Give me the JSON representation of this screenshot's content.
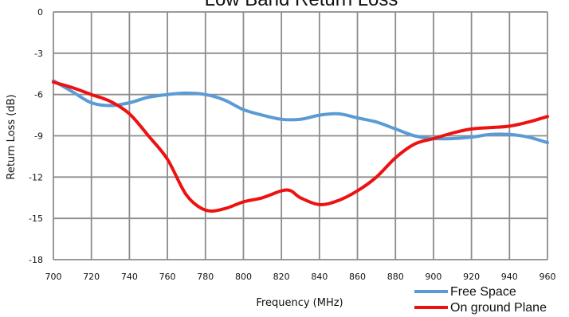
{
  "chart_data": {
    "type": "line",
    "title": "Low Band Return Loss",
    "xlabel": "Frequency (MHz)",
    "ylabel": "Return Loss (dB)",
    "xlim": [
      700,
      960
    ],
    "ylim": [
      -18,
      0
    ],
    "x_ticks": [
      700,
      720,
      740,
      760,
      780,
      800,
      820,
      840,
      860,
      880,
      900,
      920,
      940,
      960
    ],
    "y_ticks": [
      0,
      -3,
      -6,
      -9,
      -12,
      -15,
      -18
    ],
    "y_tick_labels": [
      "0",
      "-3",
      "-6",
      "-9",
      "-12",
      "-15",
      "-18"
    ],
    "grid": true,
    "legend_position": "bottom-right",
    "series": [
      {
        "name": "Free Space",
        "color": "#5b9bd5",
        "x": [
          700,
          710,
          720,
          730,
          740,
          750,
          760,
          770,
          780,
          790,
          800,
          810,
          820,
          830,
          840,
          850,
          860,
          870,
          880,
          890,
          900,
          910,
          920,
          930,
          940,
          950,
          960
        ],
        "y": [
          -5.0,
          -5.8,
          -6.6,
          -6.8,
          -6.6,
          -6.2,
          -6.0,
          -5.9,
          -6.0,
          -6.4,
          -7.1,
          -7.5,
          -7.8,
          -7.8,
          -7.5,
          -7.4,
          -7.7,
          -8.0,
          -8.5,
          -9.0,
          -9.2,
          -9.2,
          -9.1,
          -8.9,
          -8.9,
          -9.1,
          -9.5
        ]
      },
      {
        "name": "On ground Plane",
        "color": "#ee1111",
        "x": [
          700,
          710,
          720,
          730,
          740,
          750,
          760,
          770,
          780,
          790,
          800,
          810,
          820,
          825,
          830,
          840,
          850,
          860,
          870,
          880,
          890,
          900,
          910,
          920,
          930,
          940,
          950,
          960
        ],
        "y": [
          -5.1,
          -5.5,
          -6.0,
          -6.5,
          -7.4,
          -9.0,
          -10.7,
          -13.3,
          -14.4,
          -14.3,
          -13.8,
          -13.5,
          -13.0,
          -13.0,
          -13.5,
          -14.0,
          -13.7,
          -13.0,
          -12.0,
          -10.6,
          -9.6,
          -9.2,
          -8.8,
          -8.5,
          -8.4,
          -8.3,
          -8.0,
          -7.6
        ]
      }
    ]
  }
}
